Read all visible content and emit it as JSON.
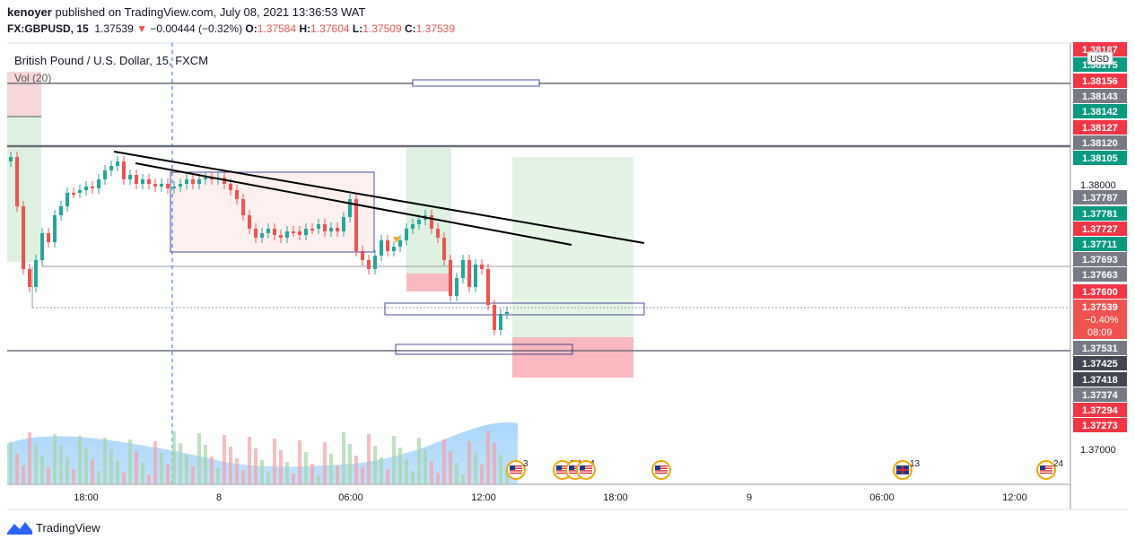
{
  "header": {
    "publisher": "kenoyer",
    "published_text": "published on TradingView.com, July 08, 2021 13:36:53 WAT",
    "symbol": "FX:GBPUSD, 15",
    "last": "1.37539",
    "change_arrow": "▼",
    "change": "−0.00444 (−0.32%)",
    "o_label": "O:",
    "o_value": "1.37584",
    "h_label": "H:",
    "h_value": "1.37604",
    "l_label": "L:",
    "l_value": "1.37509",
    "c_label": "C:",
    "c_value": "1.37539"
  },
  "chart_data": {
    "type": "candlestick",
    "title": "British Pound / U.S. Dollar, 15, FXCM",
    "volume_label": "Vol (20)",
    "currency_badge": "USD",
    "x_ticks": [
      "18:00",
      "8",
      "06:00",
      "12:00",
      "18:00",
      "9",
      "06:00",
      "12:00"
    ],
    "y_ticks": [
      "1.38000",
      "1.37000"
    ],
    "price_labels": [
      {
        "text": "1.38187",
        "color": "#f23645"
      },
      {
        "text": "1.38175",
        "color": "#089981"
      },
      {
        "text": "1.38156",
        "color": "#f23645"
      },
      {
        "text": "1.38143",
        "color": "#787b86"
      },
      {
        "text": "1.38142",
        "color": "#089981"
      },
      {
        "text": "1.38127",
        "color": "#f23645"
      },
      {
        "text": "1.38120",
        "color": "#787b86"
      },
      {
        "text": "1.38105",
        "color": "#089981"
      },
      {
        "text": "1.37787",
        "color": "#787b86"
      },
      {
        "text": "1.37781",
        "color": "#089981"
      },
      {
        "text": "1.37727",
        "color": "#f23645"
      },
      {
        "text": "1.37711",
        "color": "#089981"
      },
      {
        "text": "1.37693",
        "color": "#787b86"
      },
      {
        "text": "1.37663",
        "color": "#787b86"
      },
      {
        "text": "1.37600",
        "color": "#f23645"
      },
      {
        "text": "1.37531",
        "color": "#787b86"
      },
      {
        "text": "1.37425",
        "color": "#434651"
      },
      {
        "text": "1.37418",
        "color": "#434651"
      },
      {
        "text": "1.37374",
        "color": "#787b86"
      },
      {
        "text": "1.37294",
        "color": "#f23645"
      },
      {
        "text": "1.37273",
        "color": "#f23645"
      }
    ],
    "current_price": {
      "price": "1.37539",
      "change": "−0.40%",
      "countdown": "08:09",
      "color": "#ef5350"
    },
    "event_markers": [
      {
        "label": "3",
        "type": "us"
      },
      {
        "label": "2 14 4",
        "type": "us"
      },
      {
        "label": "",
        "type": "us"
      },
      {
        "label": "13",
        "type": "uk"
      },
      {
        "label": "24",
        "type": "us"
      }
    ]
  },
  "footer": {
    "brand": "TradingView"
  }
}
